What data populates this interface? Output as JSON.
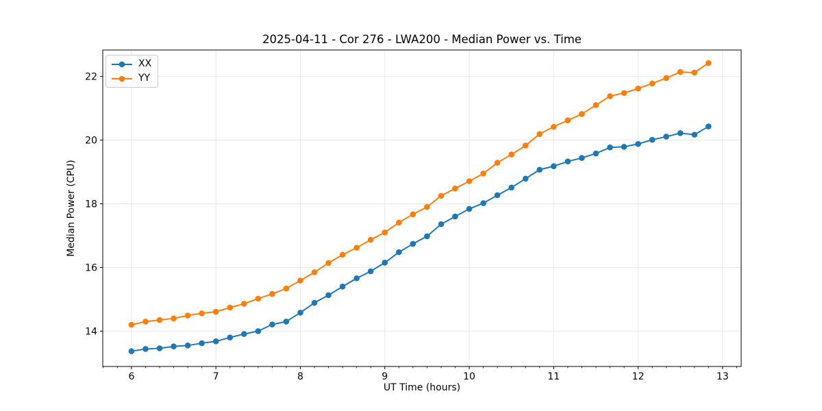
{
  "chart_data": {
    "type": "line",
    "title": "2025-04-11 - Cor 276 - LWA200 - Median Power vs. Time",
    "xlabel": "UT Time (hours)",
    "ylabel": "Median Power (CPU)",
    "x": [
      6.0,
      6.167,
      6.333,
      6.5,
      6.667,
      6.833,
      7.0,
      7.167,
      7.333,
      7.5,
      7.667,
      7.833,
      8.0,
      8.167,
      8.333,
      8.5,
      8.667,
      8.833,
      9.0,
      9.167,
      9.333,
      9.5,
      9.667,
      9.833,
      10.0,
      10.167,
      10.333,
      10.5,
      10.667,
      10.833,
      11.0,
      11.167,
      11.333,
      11.5,
      11.667,
      11.833,
      12.0,
      12.167,
      12.333,
      12.5,
      12.667,
      12.833
    ],
    "series": [
      {
        "name": "XX",
        "color": "#1f77b4",
        "values": [
          13.37,
          13.44,
          13.46,
          13.52,
          13.55,
          13.62,
          13.68,
          13.8,
          13.91,
          14.0,
          14.21,
          14.3,
          14.58,
          14.89,
          15.13,
          15.4,
          15.66,
          15.88,
          16.15,
          16.48,
          16.74,
          16.98,
          17.36,
          17.6,
          17.84,
          18.02,
          18.27,
          18.51,
          18.79,
          19.07,
          19.18,
          19.33,
          19.44,
          19.58,
          19.77,
          19.79,
          19.88,
          20.01,
          20.11,
          20.22,
          20.17,
          20.43
        ]
      },
      {
        "name": "YY",
        "color": "#ff7f0e",
        "values": [
          14.2,
          14.3,
          14.35,
          14.4,
          14.49,
          14.56,
          14.61,
          14.74,
          14.86,
          15.02,
          15.17,
          15.34,
          15.59,
          15.85,
          16.14,
          16.4,
          16.62,
          16.87,
          17.1,
          17.41,
          17.67,
          17.9,
          18.25,
          18.48,
          18.71,
          18.95,
          19.29,
          19.55,
          19.83,
          20.19,
          20.42,
          20.62,
          20.82,
          21.1,
          21.38,
          21.48,
          21.62,
          21.78,
          21.95,
          22.14,
          22.12,
          22.42
        ]
      }
    ],
    "xlim": [
      5.66,
      13.22
    ],
    "ylim": [
      12.89,
      22.83
    ],
    "xticks": [
      6,
      7,
      8,
      9,
      10,
      11,
      12,
      13
    ],
    "yticks": [
      14,
      16,
      18,
      20,
      22
    ],
    "x_minor_step": 0.16667,
    "grid": true,
    "grid_color": "#e7e7e7",
    "spine_color": "#000000",
    "legend_position": "upper left",
    "marker": "o"
  }
}
